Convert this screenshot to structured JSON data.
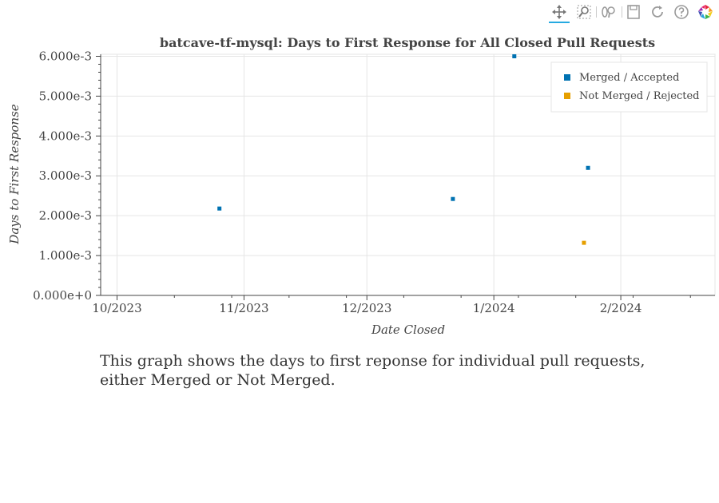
{
  "toolbar": {
    "tools": [
      {
        "name": "pan-icon",
        "active": true
      },
      {
        "name": "box-zoom-icon",
        "active": false
      },
      {
        "name": "wheel-zoom-icon",
        "active": false
      },
      {
        "name": "save-icon",
        "active": false
      },
      {
        "name": "reset-icon",
        "active": false
      },
      {
        "name": "help-icon",
        "active": false
      },
      {
        "name": "bokeh-logo-icon",
        "active": false
      }
    ]
  },
  "caption": "This graph shows the days to first reponse for individual pull requests, either Merged or Not Merged.",
  "chart_data": {
    "type": "scatter",
    "title": "batcave-tf-mysql: Days to First Response for All Closed Pull Requests",
    "xlabel": "Date Closed",
    "ylabel": "Days to First Response",
    "x_ticks": [
      "10/2023",
      "11/2023",
      "12/2023",
      "1/2024",
      "2/2024"
    ],
    "y_ticks": [
      "0.000e+0",
      "1.000e-3",
      "2.000e-3",
      "3.000e-3",
      "4.000e-3",
      "5.000e-3",
      "6.000e-3"
    ],
    "ylim": [
      0,
      0.00605
    ],
    "xlim": [
      "2023-09-27",
      "2024-02-24"
    ],
    "grid": true,
    "legend_position": "top-right",
    "series": [
      {
        "name": "Merged / Accepted",
        "color": "#0072b2",
        "points": [
          {
            "x": "2023-10-26",
            "y": 0.00218
          },
          {
            "x": "2023-12-22",
            "y": 0.00242
          },
          {
            "x": "2024-01-06",
            "y": 0.006
          },
          {
            "x": "2024-01-24",
            "y": 0.0032
          }
        ]
      },
      {
        "name": "Not Merged / Rejected",
        "color": "#e69f00",
        "points": [
          {
            "x": "2024-01-23",
            "y": 0.00132
          }
        ]
      }
    ]
  }
}
